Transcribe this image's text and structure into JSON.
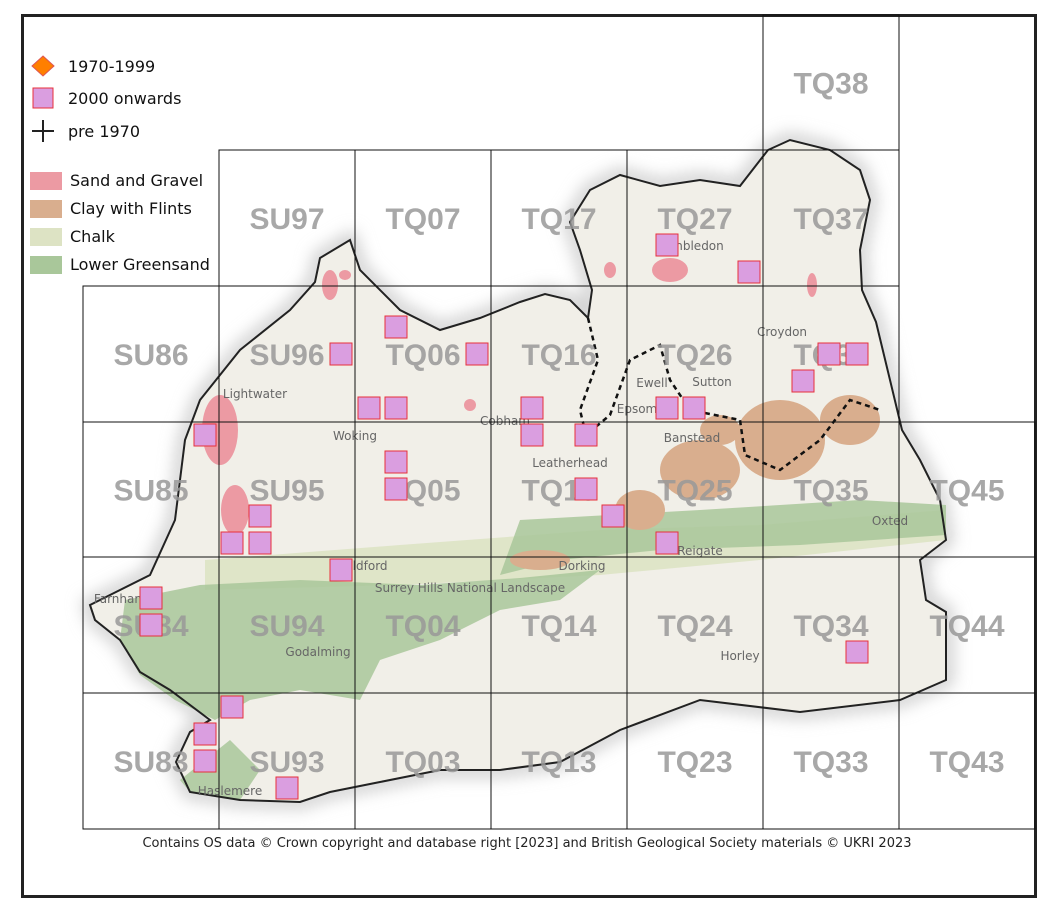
{
  "legend": {
    "records": [
      {
        "label": "1970-1999",
        "symbol": "diamond",
        "color": "#ff7f00"
      },
      {
        "label": "2000 onwards",
        "symbol": "square",
        "color": "#da9ee0",
        "stroke": "#e8303a"
      },
      {
        "label": "pre 1970",
        "symbol": "cross",
        "color": "#222222"
      }
    ],
    "geology": [
      {
        "label": "Sand and Gravel",
        "color": "#ec9aa3"
      },
      {
        "label": "Clay with Flints",
        "color": "#d9ae8e"
      },
      {
        "label": "Chalk",
        "color": "#dde3c4"
      },
      {
        "label": "Lower Greensand",
        "color": "#a9c79a"
      }
    ]
  },
  "grid_labels": [
    [
      "",
      "",
      "",
      "",
      "",
      "TQ38",
      ""
    ],
    [
      "",
      "SU97",
      "TQ07",
      "TQ17",
      "TQ27",
      "TQ37",
      ""
    ],
    [
      "SU86",
      "SU96",
      "TQ06",
      "TQ16",
      "TQ26",
      "TQ36",
      ""
    ],
    [
      "SU85",
      "SU95",
      "TQ05",
      "TQ15",
      "TQ25",
      "TQ35",
      "TQ45"
    ],
    [
      "SU84",
      "SU94",
      "TQ04",
      "TQ14",
      "TQ24",
      "TQ34",
      "TQ44"
    ],
    [
      "SU83",
      "SU93",
      "TQ03",
      "TQ13",
      "TQ23",
      "TQ33",
      "TQ43"
    ]
  ],
  "place_names": [
    "Lightwater",
    "Woking",
    "Cobham",
    "Leatherhead",
    "Ewell",
    "Epsom",
    "Banstead",
    "Sutton",
    "Croydon",
    "Wimbledon",
    "Guildford",
    "Dorking",
    "Reigate",
    "Oxted",
    "Godalming",
    "Horley",
    "Haslemere",
    "Farnham",
    "Surrey Hills National Landscape"
  ],
  "caption": "Contains OS data  © Crown copyright and database right [2023] and British Geological Society materials © UKRI 2023"
}
